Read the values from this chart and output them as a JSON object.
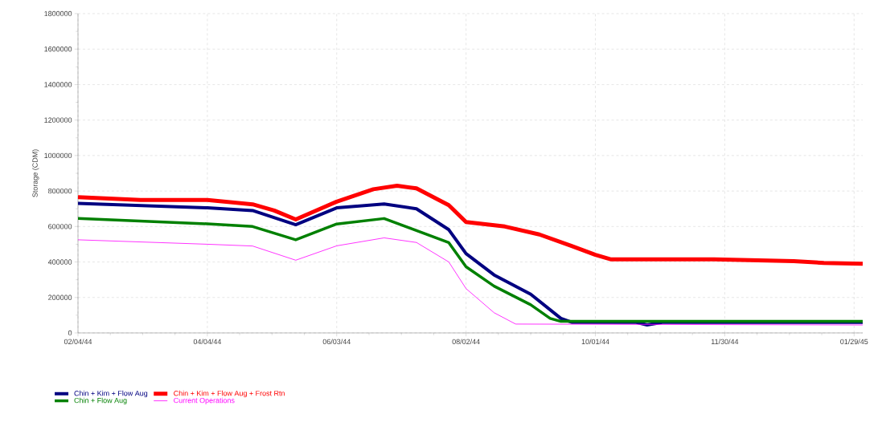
{
  "chart_data": {
    "type": "line",
    "ylabel": "Storage (CDM)",
    "xlim": [
      "1944-02-04",
      "1945-02-02"
    ],
    "xticks": [
      {
        "value": "1944-02-04",
        "label": "02/04/44"
      },
      {
        "value": "1944-04-04",
        "label": "04/04/44"
      },
      {
        "value": "1944-06-03",
        "label": "06/03/44"
      },
      {
        "value": "1944-08-02",
        "label": "08/02/44"
      },
      {
        "value": "1944-10-01",
        "label": "10/01/44"
      },
      {
        "value": "1944-11-30",
        "label": "11/30/44"
      },
      {
        "value": "1945-01-29",
        "label": "01/29/45"
      }
    ],
    "ylim": [
      0,
      1800000
    ],
    "yticks": [
      0,
      200000,
      400000,
      600000,
      800000,
      1000000,
      1200000,
      1400000,
      1600000,
      1800000
    ],
    "grid": true,
    "legend": "bottom",
    "series": [
      {
        "name": "Chin + Kim + Flow Aug",
        "color": "#000080",
        "x": [
          "1944-02-04",
          "1944-04-04",
          "1944-04-25",
          "1944-05-15",
          "1944-06-03",
          "1944-06-25",
          "1944-07-10",
          "1944-07-25",
          "1944-08-02",
          "1944-08-15",
          "1944-09-01",
          "1944-09-15",
          "1944-09-20",
          "1944-10-20",
          "1944-10-25",
          "1944-11-01",
          "1945-02-02"
        ],
        "values": [
          730000,
          705000,
          690000,
          610000,
          705000,
          727000,
          700000,
          582000,
          447000,
          327000,
          218000,
          82000,
          60000,
          60000,
          45000,
          60000,
          60000
        ]
      },
      {
        "name": "Chin + Flow Aug",
        "color": "#008000",
        "x": [
          "1944-02-04",
          "1944-04-04",
          "1944-04-25",
          "1944-05-15",
          "1944-06-03",
          "1944-06-25",
          "1944-07-25",
          "1944-08-02",
          "1944-08-15",
          "1944-09-01",
          "1944-09-10",
          "1944-09-15",
          "1945-02-02"
        ],
        "values": [
          645000,
          615000,
          600000,
          525000,
          614000,
          645000,
          509000,
          373000,
          264000,
          159000,
          82000,
          65000,
          65000
        ]
      },
      {
        "name": "Chin + Kim + Flow Aug + Frost Rtn",
        "color": "#ff0000",
        "x": [
          "1944-02-04",
          "1944-03-04",
          "1944-04-04",
          "1944-04-25",
          "1944-05-05",
          "1944-05-15",
          "1944-06-03",
          "1944-06-20",
          "1944-07-01",
          "1944-07-10",
          "1944-07-25",
          "1944-08-02",
          "1944-08-20",
          "1944-09-05",
          "1944-09-20",
          "1944-10-01",
          "1944-10-08",
          "1944-11-25",
          "1945-01-01",
          "1945-01-15",
          "1945-02-02"
        ],
        "values": [
          765000,
          750000,
          750000,
          725000,
          690000,
          640000,
          740000,
          810000,
          830000,
          815000,
          720000,
          625000,
          600000,
          555000,
          490000,
          440000,
          415000,
          415000,
          405000,
          395000,
          390000
        ]
      },
      {
        "name": "Current Operations",
        "color": "#ff00ff",
        "x": [
          "1944-02-04",
          "1944-04-04",
          "1944-04-25",
          "1944-05-15",
          "1944-06-03",
          "1944-06-25",
          "1944-07-10",
          "1944-07-25",
          "1944-08-02",
          "1944-08-15",
          "1944-08-25",
          "1945-02-02"
        ],
        "values": [
          525000,
          500000,
          490000,
          410000,
          491000,
          536000,
          510000,
          400000,
          250000,
          114000,
          50000,
          45000
        ]
      }
    ]
  }
}
